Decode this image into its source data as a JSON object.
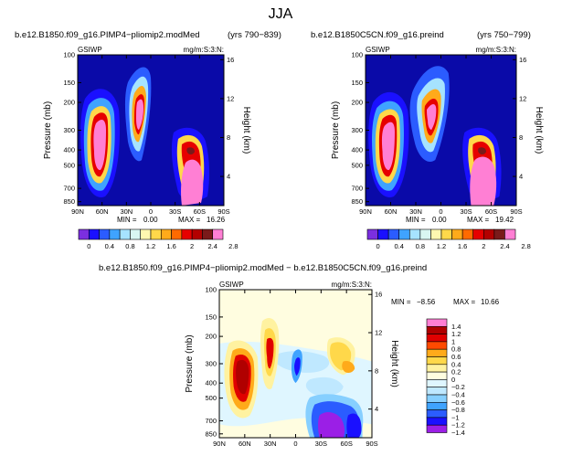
{
  "figure": {
    "title": "JJA"
  },
  "colors": {
    "field_ramp": [
      "#7b2fe0",
      "#1a10ff",
      "#2b5cff",
      "#3fa3ff",
      "#a6e3ff",
      "#d9f7f2",
      "#fff7b0",
      "#ffd84a",
      "#ffaa1a",
      "#ff6a00",
      "#e60000",
      "#b30000",
      "#7a1a1a",
      "#ff7fd4"
    ],
    "diff_ramp": [
      "#9b1fe6",
      "#1a10ff",
      "#2b5cff",
      "#3fa3ff",
      "#86cfff",
      "#bfe8ff",
      "#dff6ff",
      "#fffde0",
      "#fff2a0",
      "#ffd84a",
      "#ffaa1a",
      "#ff4a00",
      "#e00000",
      "#b00000",
      "#ff7fd4"
    ],
    "background": "#0a0aa8"
  },
  "panels": [
    {
      "id": "p1",
      "left_title": "b.e12.B1850.f09_g16.PIMP4−pliomip2.modMed",
      "right_title": "(yrs 790−839)",
      "var_label": "GSIWP",
      "units_label": "mg/m:S:3:N:",
      "min_label": "MIN =",
      "min_value": "0.00",
      "max_label": "MAX =",
      "max_value": "16.26"
    },
    {
      "id": "p2",
      "left_title": "b.e12.B1850C5CN.f09_g16.preind",
      "right_title": "(yrs 750−799)",
      "var_label": "GSIWP",
      "units_label": "mg/m:S:3:N:",
      "min_label": "MIN =",
      "min_value": "0.00",
      "max_label": "MAX =",
      "max_value": "19.42"
    },
    {
      "id": "p3",
      "left_title": "b.e12.B1850.f09_g16.PIMP4−pliomip2.modMed − b.e12.B1850C5CN.f09_g16.preind",
      "var_label": "GSIWP",
      "units_label": "mg/m:S:3:N:",
      "min_label": "MIN =",
      "min_value": "−8.56",
      "max_label": "MAX =",
      "max_value": "10.66"
    }
  ],
  "chart_data": {
    "type": "heatmap",
    "x": {
      "label": "",
      "ticks": [
        "90N",
        "60N",
        "30N",
        "0",
        "30S",
        "60S",
        "90S"
      ],
      "range": [
        90,
        -90
      ]
    },
    "y_left": {
      "label": "Pressure (mb)",
      "ticks": [
        "100",
        "150",
        "200",
        "300",
        "400",
        "500",
        "700",
        "850"
      ],
      "values": [
        100,
        150,
        200,
        300,
        400,
        500,
        700,
        850
      ],
      "range": [
        100,
        900
      ]
    },
    "y_right": {
      "label": "Height (km)",
      "ticks": [
        "16",
        "12",
        "8",
        "4"
      ],
      "values": [
        16,
        12,
        8,
        4
      ]
    },
    "field_colorbar": {
      "labels": [
        "0",
        "0.4",
        "0.8",
        "1.2",
        "1.6",
        "2",
        "2.4",
        "2.8"
      ]
    },
    "diff_colorbar": {
      "labels": [
        "1.4",
        "1.2",
        "1",
        "0.8",
        "0.6",
        "0.4",
        "0.2",
        "0",
        "−0.2",
        "−0.4",
        "−0.6",
        "−0.8",
        "−1",
        "−1.2",
        "−1.4"
      ]
    }
  }
}
